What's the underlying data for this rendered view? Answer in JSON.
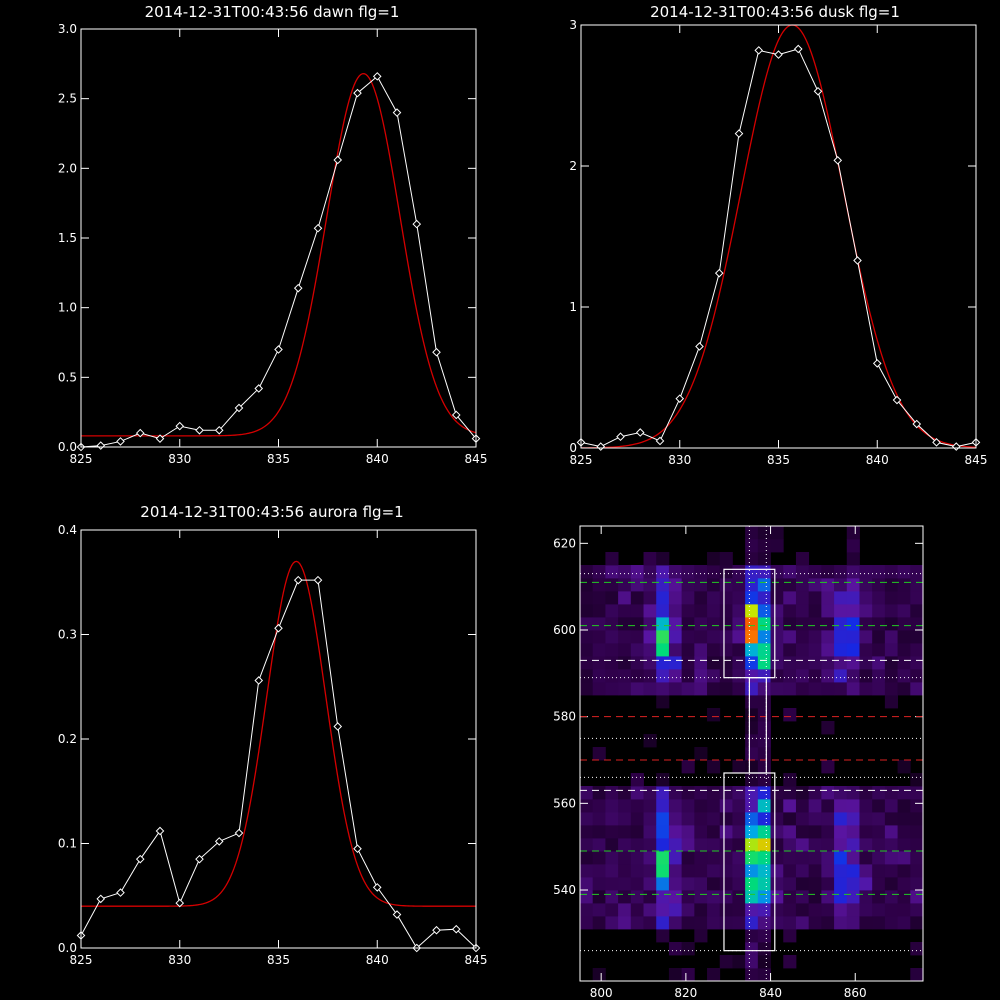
{
  "colors": {
    "background": "#000000",
    "axes": "#ffffff",
    "observed": "#ffffff",
    "fit": "#d40000",
    "guide_green": "#22cc22",
    "guide_red": "#dd2222",
    "guide_white": "#ffffff"
  },
  "chart_data": [
    {
      "type": "line",
      "title": "2014-12-31T00:43:56 dawn flg=1",
      "xlim": [
        825,
        845
      ],
      "ylim": [
        0,
        3.0
      ],
      "xticks": [
        "825",
        "830",
        "835",
        "840",
        "845"
      ],
      "yticks": [
        "0.0",
        "0.5",
        "1.0",
        "1.5",
        "2.0",
        "2.5",
        "3.0"
      ],
      "series": [
        {
          "marker": "diamond",
          "x": [
            825,
            826,
            827,
            828,
            829,
            830,
            831,
            832,
            833,
            834,
            835,
            836,
            837,
            838,
            839,
            840,
            841,
            842,
            843,
            844,
            845
          ],
          "y": [
            0.0,
            0.01,
            0.04,
            0.1,
            0.06,
            0.15,
            0.12,
            0.12,
            0.28,
            0.42,
            0.7,
            1.14,
            1.57,
            2.06,
            2.54,
            2.66,
            2.4,
            1.6,
            0.68,
            0.23,
            0.06
          ]
        },
        {
          "fit": "gaussian",
          "baseline": 0.08,
          "amplitude": 2.6,
          "center": 839.3,
          "sigma": 1.85
        }
      ]
    },
    {
      "type": "line",
      "title": "2014-12-31T00:43:56 dusk flg=1",
      "xlim": [
        825,
        845
      ],
      "ylim": [
        0,
        3
      ],
      "xticks": [
        "825",
        "830",
        "835",
        "840",
        "845"
      ],
      "yticks": [
        "0",
        "1",
        "2",
        "3"
      ],
      "series": [
        {
          "marker": "diamond",
          "x": [
            825,
            826,
            827,
            828,
            829,
            830,
            831,
            832,
            833,
            834,
            835,
            836,
            837,
            838,
            839,
            840,
            841,
            842,
            843,
            844,
            845
          ],
          "y": [
            0.04,
            0.01,
            0.08,
            0.11,
            0.05,
            0.35,
            0.72,
            1.24,
            2.23,
            2.82,
            2.79,
            2.83,
            2.53,
            2.04,
            1.33,
            0.6,
            0.34,
            0.17,
            0.04,
            0.01,
            0.04
          ]
        },
        {
          "fit": "gaussian",
          "baseline": 0.0,
          "amplitude": 3.0,
          "center": 835.7,
          "sigma": 2.6
        }
      ]
    },
    {
      "type": "line",
      "title": "2014-12-31T00:43:56 aurora flg=1",
      "xlim": [
        825,
        845
      ],
      "ylim": [
        0,
        0.4
      ],
      "xticks": [
        "825",
        "830",
        "835",
        "840",
        "845"
      ],
      "yticks": [
        "0.0",
        "0.1",
        "0.2",
        "0.3",
        "0.4"
      ],
      "series": [
        {
          "marker": "diamond",
          "x": [
            825,
            826,
            827,
            828,
            829,
            830,
            831,
            832,
            833,
            834,
            835,
            836,
            837,
            838,
            839,
            840,
            841,
            842,
            843,
            844,
            845
          ],
          "y": [
            0.012,
            0.047,
            0.053,
            0.085,
            0.112,
            0.043,
            0.085,
            0.102,
            0.11,
            0.256,
            0.306,
            0.352,
            0.352,
            0.212,
            0.095,
            0.058,
            0.032,
            0.0,
            0.017,
            0.018,
            0.0
          ]
        },
        {
          "fit": "gaussian",
          "baseline": 0.04,
          "amplitude": 0.33,
          "center": 835.9,
          "sigma": 1.5
        }
      ]
    },
    {
      "type": "heatmap",
      "xlim": [
        795,
        876
      ],
      "ylim": [
        519,
        624
      ],
      "xticks": [
        "800",
        "820",
        "840",
        "860"
      ],
      "yticks": [
        "540",
        "560",
        "580",
        "600",
        "620"
      ],
      "colormap": "rainbow",
      "emission_columns_x": [
        815,
        836,
        838,
        858
      ],
      "horizontal_guides": [
        {
          "y": 611,
          "color": "green",
          "style": "dashed"
        },
        {
          "y": 601,
          "color": "green",
          "style": "dashed"
        },
        {
          "y": 593,
          "color": "white",
          "style": "dashed"
        },
        {
          "y": 580,
          "color": "red",
          "style": "dashed"
        },
        {
          "y": 570,
          "color": "red",
          "style": "dashed"
        },
        {
          "y": 563,
          "color": "white",
          "style": "dashed"
        },
        {
          "y": 549,
          "color": "green",
          "style": "dashed"
        },
        {
          "y": 539,
          "color": "green",
          "style": "dashed"
        },
        {
          "y": 613,
          "color": "white",
          "style": "dotted"
        },
        {
          "y": 589,
          "color": "white",
          "style": "dotted"
        },
        {
          "y": 575,
          "color": "white",
          "style": "dotted"
        },
        {
          "y": 566,
          "color": "white",
          "style": "dotted"
        },
        {
          "y": 526,
          "color": "white",
          "style": "dotted"
        }
      ],
      "vertical_guides": [
        {
          "x": 835,
          "color": "white",
          "style": "dotted"
        },
        {
          "x": 839,
          "color": "white",
          "style": "dotted"
        }
      ],
      "boxes": [
        {
          "x": [
            829,
            841
          ],
          "y": [
            589,
            614
          ]
        },
        {
          "x": [
            829,
            841
          ],
          "y": [
            526,
            567
          ]
        },
        {
          "x": [
            835,
            839
          ],
          "y": [
            567,
            589
          ]
        }
      ]
    }
  ]
}
